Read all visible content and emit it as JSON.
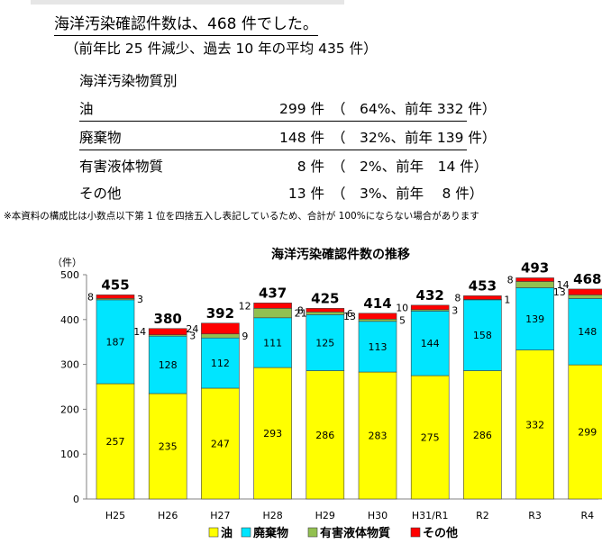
{
  "summary": {
    "headline": "海洋汚染確認件数は、468 件でした。",
    "subline": "（前年比 25 件減少、過去 10 年の平均 435 件）",
    "category_header": "海洋汚染物質別",
    "rows": [
      {
        "name": "油",
        "count": "299 件",
        "detail": "（　64%、前年 332 件）",
        "underline": true
      },
      {
        "name": "廃棄物",
        "count": "148 件",
        "detail": "（　32%、前年 139 件）",
        "underline": true
      },
      {
        "name": "有害液体物質",
        "count": "8 件",
        "detail": "（　2%、前年　14 件）",
        "underline": false
      },
      {
        "name": "その他",
        "count": "13 件",
        "detail": "（　3%、前年　 8 件）",
        "underline": false
      }
    ],
    "note": "※本資料の構成比は小数点以下第 1 位を四捨五入し表記しているため、合計が 100%にならない場合があります"
  },
  "chart_data": {
    "type": "bar",
    "stacked": true,
    "title": "海洋汚染確認件数の推移",
    "ylabel": "（件）",
    "ylim": [
      0,
      500
    ],
    "yticks": [
      0,
      100,
      200,
      300,
      400,
      500
    ],
    "categories": [
      "H25",
      "H26",
      "H27",
      "H28",
      "H29",
      "H30",
      "H31/R1",
      "R2",
      "R3",
      "R4"
    ],
    "totals": [
      455,
      380,
      392,
      437,
      425,
      414,
      432,
      453,
      493,
      468
    ],
    "series": [
      {
        "name": "油",
        "color": "#ffff00",
        "values": [
          257,
          235,
          247,
          293,
          286,
          283,
          275,
          286,
          332,
          299
        ]
      },
      {
        "name": "廃棄物",
        "color": "#00e5ff",
        "values": [
          187,
          128,
          112,
          111,
          125,
          113,
          144,
          158,
          139,
          148
        ]
      },
      {
        "name": "有害液体物質",
        "color": "#92c050",
        "values": [
          3,
          3,
          9,
          21,
          6,
          5,
          3,
          1,
          14,
          8
        ]
      },
      {
        "name": "その他",
        "color": "#ff0000",
        "values": [
          8,
          14,
          24,
          12,
          8,
          13,
          10,
          8,
          8,
          13
        ]
      }
    ],
    "legend_position": "bottom",
    "grid": false
  }
}
